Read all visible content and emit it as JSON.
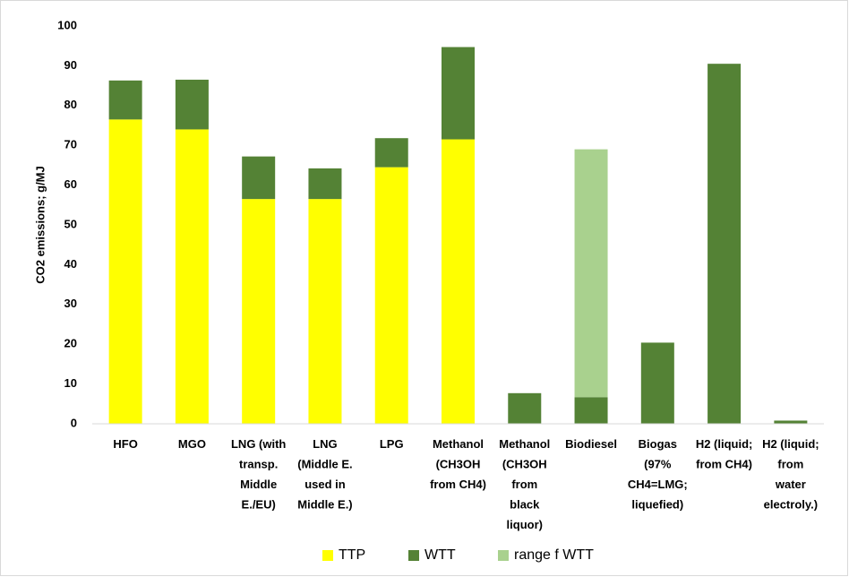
{
  "chart_data": {
    "type": "stacked-bar",
    "y_label": "CO2 emissions; g/MJ",
    "categories": [
      "HFO",
      "MGO",
      "LNG (with\ntransp.\nMiddle\nE./EU)",
      "LNG\n(Middle E.\nused in\nMiddle E.)",
      "LPG",
      "Methanol\n(CH3OH\nfrom CH4)",
      "Methanol\n(CH3OH\nfrom\nblack\nliquor)",
      "Biodiesel",
      "Biogas\n(97%\nCH4=LMG;\nliquefied)",
      "H2 (liquid;\nfrom CH4)",
      "H2 (liquid;\nfrom\nwater\nelectroly.)"
    ],
    "series": [
      {
        "name": "TTP",
        "color": "#ffff00",
        "values": [
          76.5,
          74,
          56.5,
          56.5,
          64.5,
          71.5,
          0,
          0,
          0,
          0,
          0
        ]
      },
      {
        "name": "WTT",
        "color": "#548235",
        "values": [
          9.8,
          12.5,
          10.7,
          7.7,
          7.3,
          23.2,
          7.7,
          6.7,
          20.4,
          90.5,
          0.8
        ]
      },
      {
        "name": "range f WTT",
        "color": "#a9d18e",
        "values": [
          0,
          0,
          0,
          0,
          0,
          0,
          0,
          62.3,
          0,
          0,
          0
        ]
      }
    ],
    "ylim": [
      0,
      100
    ],
    "yticks": [
      0,
      10,
      20,
      30,
      40,
      50,
      60,
      70,
      80,
      90,
      100
    ],
    "grid": false,
    "legend": "bottom"
  }
}
